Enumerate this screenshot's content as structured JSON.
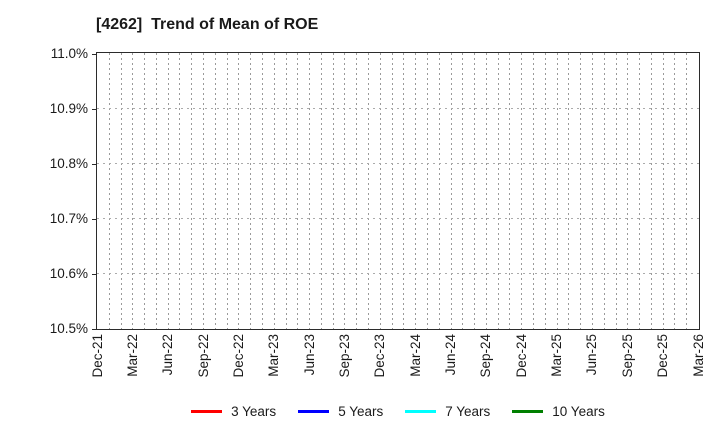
{
  "title": "[4262]  Trend of Mean of ROE",
  "chart_data": {
    "type": "line",
    "title": "[4262]  Trend of Mean of ROE",
    "x_tick_labels": [
      "Dec-21",
      "Mar-22",
      "Jun-22",
      "Sep-22",
      "Dec-22",
      "Mar-23",
      "Jun-23",
      "Sep-23",
      "Dec-23",
      "Mar-24",
      "Jun-24",
      "Sep-24",
      "Dec-24",
      "Mar-25",
      "Jun-25",
      "Sep-25",
      "Dec-25",
      "Mar-26"
    ],
    "x_months_between_labeled_ticks": 3,
    "x_total_month_intervals": 51,
    "y_tick_labels": [
      "10.5%",
      "10.6%",
      "10.7%",
      "10.8%",
      "10.9%",
      "11.0%"
    ],
    "ylim": [
      10.5,
      11.0
    ],
    "grid": "dotted, vertical line every month, horizontal line every 0.1%",
    "legend_position": "bottom",
    "plot_content": "empty - no data lines visible within the axis range",
    "series": [
      {
        "name": "3 Years",
        "color": "#ff0000",
        "values": []
      },
      {
        "name": "5 Years",
        "color": "#0000ff",
        "values": []
      },
      {
        "name": "7 Years",
        "color": "#00ffff",
        "values": []
      },
      {
        "name": "10 Years",
        "color": "#007f00",
        "values": []
      }
    ]
  }
}
